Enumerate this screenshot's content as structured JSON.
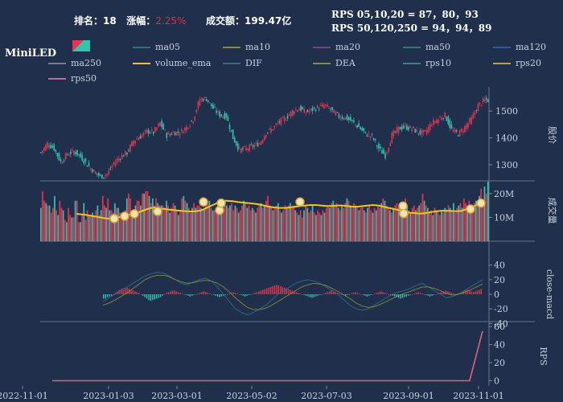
{
  "header": {
    "rank_label": "排名：",
    "rank_value": "18",
    "change_label": "涨幅：",
    "change_value": "2.25%",
    "turnover_label": "成交额：",
    "turnover_value": "199.47亿",
    "rps_line1": "RPS 05,10,20 = 87，80，93",
    "rps_line2": "RPS 50,120,250 = 94，94，89"
  },
  "title": "MiniLED",
  "legend": [
    {
      "name": "ma05",
      "color": "#2a6f8a"
    },
    {
      "name": "ma10",
      "color": "#8a8a3a"
    },
    {
      "name": "ma20",
      "color": "#6a4a7a"
    },
    {
      "name": "ma50",
      "color": "#2f7a6a"
    },
    {
      "name": "ma120",
      "color": "#2a5a9a"
    },
    {
      "name": "ma250",
      "color": "#7a7a8a"
    },
    {
      "name": "volume_ema",
      "color": "#f5c518"
    },
    {
      "name": "DIF",
      "color": "#2a6f8a"
    },
    {
      "name": "DEA",
      "color": "#8a8a3a"
    },
    {
      "name": "rps10",
      "color": "#2a8a8a"
    },
    {
      "name": "rps20",
      "color": "#c0a040"
    },
    {
      "name": "rps50",
      "color": "#d060a0"
    }
  ],
  "colors": {
    "up": "#e8354f",
    "down": "#36c3ae",
    "ema": "#f5c518",
    "rps": "#e0607e"
  },
  "chart_data": [
    {
      "type": "candlestick",
      "ylabel": "股价",
      "yticks": [
        1300,
        1400,
        1500
      ],
      "ylim": [
        1240,
        1590
      ],
      "dates": [
        "2022-11-01",
        "2023-11-01"
      ],
      "points": [
        [
          0,
          1345
        ],
        [
          4,
          1380
        ],
        [
          8,
          1360
        ],
        [
          12,
          1310
        ],
        [
          16,
          1340
        ],
        [
          20,
          1350
        ],
        [
          24,
          1330
        ],
        [
          28,
          1300
        ],
        [
          32,
          1275
        ],
        [
          36,
          1255
        ],
        [
          40,
          1265
        ],
        [
          44,
          1305
        ],
        [
          48,
          1330
        ],
        [
          52,
          1345
        ],
        [
          56,
          1390
        ],
        [
          60,
          1405
        ],
        [
          64,
          1425
        ],
        [
          68,
          1420
        ],
        [
          72,
          1455
        ],
        [
          76,
          1410
        ],
        [
          80,
          1420
        ],
        [
          84,
          1420
        ],
        [
          88,
          1440
        ],
        [
          92,
          1470
        ],
        [
          96,
          1545
        ],
        [
          100,
          1545
        ],
        [
          104,
          1510
        ],
        [
          108,
          1485
        ],
        [
          112,
          1480
        ],
        [
          116,
          1400
        ],
        [
          120,
          1355
        ],
        [
          124,
          1360
        ],
        [
          128,
          1370
        ],
        [
          132,
          1380
        ],
        [
          136,
          1420
        ],
        [
          140,
          1435
        ],
        [
          144,
          1460
        ],
        [
          148,
          1475
        ],
        [
          152,
          1500
        ],
        [
          156,
          1510
        ],
        [
          160,
          1495
        ],
        [
          164,
          1505
        ],
        [
          168,
          1515
        ],
        [
          172,
          1520
        ],
        [
          176,
          1500
        ],
        [
          180,
          1480
        ],
        [
          184,
          1475
        ],
        [
          188,
          1460
        ],
        [
          192,
          1440
        ],
        [
          196,
          1415
        ],
        [
          200,
          1405
        ],
        [
          204,
          1360
        ],
        [
          208,
          1335
        ],
        [
          212,
          1410
        ],
        [
          216,
          1435
        ],
        [
          220,
          1440
        ],
        [
          224,
          1435
        ],
        [
          228,
          1420
        ],
        [
          232,
          1420
        ],
        [
          236,
          1455
        ],
        [
          240,
          1470
        ],
        [
          244,
          1485
        ],
        [
          248,
          1430
        ],
        [
          252,
          1415
        ],
        [
          256,
          1440
        ],
        [
          260,
          1470
        ],
        [
          264,
          1520
        ],
        [
          268,
          1540
        ]
      ]
    },
    {
      "type": "bar",
      "ylabel": "成交量",
      "ytick_labels": [
        "10M",
        "20M"
      ],
      "yticks": [
        10000000,
        20000000
      ],
      "ylim": [
        0,
        25000000
      ],
      "volumes": [
        14,
        21,
        17,
        16,
        15,
        15,
        12,
        14,
        19,
        13,
        11,
        17,
        14,
        13,
        9,
        8,
        14,
        11,
        10,
        10,
        17,
        17,
        8,
        8,
        11,
        16,
        9,
        13,
        11,
        11,
        12,
        11,
        13,
        15,
        11,
        13,
        19,
        15,
        14,
        18,
        13,
        13,
        12,
        16,
        14,
        14,
        12,
        11,
        12,
        13,
        18,
        20,
        18,
        11,
        13,
        15,
        17,
        17,
        15,
        20,
        20,
        21,
        21,
        19,
        16,
        18,
        15,
        18,
        16,
        15,
        15,
        15,
        14,
        17,
        15,
        12,
        14,
        16,
        15,
        13,
        11,
        13,
        18,
        19,
        17,
        16,
        14,
        12,
        14,
        16,
        14,
        15,
        15,
        14,
        13,
        14,
        15,
        16,
        17,
        14,
        13,
        13,
        14,
        15,
        13,
        15,
        14,
        16,
        15,
        14,
        15,
        16,
        13,
        15,
        14,
        12,
        13,
        15,
        17,
        16,
        14,
        15,
        13,
        14,
        13,
        12,
        14,
        15,
        16,
        14,
        15,
        17,
        19,
        15,
        14,
        13,
        14,
        15,
        16,
        13,
        12,
        13,
        15,
        14,
        15,
        16,
        14,
        15,
        13,
        12,
        11,
        13,
        10,
        13,
        15,
        14,
        12,
        13,
        15,
        12,
        11,
        13,
        12,
        11,
        13,
        12,
        14,
        15,
        14,
        16,
        17,
        15,
        16,
        14,
        13,
        15,
        14,
        16,
        18,
        17,
        15,
        14,
        16,
        15,
        14,
        13,
        14,
        15,
        13,
        12,
        14,
        15,
        13,
        12,
        14,
        13,
        15,
        14,
        16,
        18,
        17,
        15,
        14,
        13,
        12,
        14,
        15,
        16,
        14,
        13,
        14,
        16,
        18,
        15,
        13,
        12,
        14,
        15,
        13,
        14,
        15,
        16,
        20,
        17,
        15,
        14,
        12,
        13,
        11,
        14,
        13,
        12,
        11,
        13,
        12,
        14,
        13,
        15,
        14,
        13,
        16,
        12,
        14,
        15,
        16,
        14,
        18,
        16,
        15,
        17,
        14,
        13,
        16,
        17,
        15,
        19,
        22,
        17,
        23,
        20,
        25
      ],
      "ema": [
        11.5,
        11.3,
        11.0,
        10.6,
        10.2,
        9.8,
        9.5,
        9.5,
        10.0,
        10.6,
        11.0,
        11.5,
        12.2,
        13.0,
        13.8,
        14.2,
        13.8,
        13.5,
        13.2,
        13.0,
        12.8,
        12.6,
        12.5,
        12.6,
        13.0,
        14.0,
        15.0,
        16.0,
        17.0,
        17.0,
        16.8,
        16.5,
        16.2,
        16.0,
        15.8,
        15.5,
        15.0,
        14.5,
        14.2,
        14.0,
        14.0,
        14.2,
        14.5,
        14.8,
        15.0,
        15.2,
        15.2,
        15.0,
        14.8,
        14.8,
        15.0,
        15.0,
        14.8,
        14.5,
        14.5,
        14.8,
        15.0,
        15.2,
        15.0,
        14.5,
        14.0,
        13.5,
        13.0,
        12.5,
        12.0,
        11.8,
        11.6,
        11.8,
        12.2,
        12.5,
        12.8,
        12.8,
        12.7,
        12.6,
        12.8,
        13.5,
        14.2,
        15.5,
        16.5
      ],
      "markers": [
        9.5,
        10.5,
        11.5,
        12.5,
        16.5,
        13.0,
        16.0,
        16.5,
        14.8,
        11.6,
        13.5,
        16.0
      ]
    },
    {
      "type": "bar+line",
      "ylabel": "close-macd",
      "yticks": [
        -40,
        -20,
        0,
        20,
        40
      ],
      "ylim": [
        -44,
        44
      ],
      "dif": [
        -10,
        -5,
        0,
        5,
        10,
        15,
        20,
        25,
        28,
        30,
        29,
        25,
        20,
        15,
        13,
        17,
        20,
        22,
        18,
        10,
        0,
        -10,
        -20,
        -25,
        -28,
        -25,
        -20,
        -15,
        -8,
        0,
        5,
        10,
        15,
        18,
        20,
        18,
        15,
        10,
        5,
        0,
        -8,
        -15,
        -20,
        -22,
        -20,
        -15,
        -10,
        -5,
        0,
        3,
        5,
        8,
        12,
        15,
        10,
        5,
        0,
        -5,
        -3,
        0,
        5,
        10,
        15,
        20
      ],
      "dea": [
        -15,
        -12,
        -8,
        -3,
        2,
        8,
        14,
        20,
        24,
        26,
        26,
        24,
        20,
        17,
        15,
        16,
        18,
        19,
        18,
        15,
        10,
        3,
        -5,
        -12,
        -18,
        -21,
        -21,
        -19,
        -15,
        -10,
        -5,
        0,
        5,
        10,
        13,
        15,
        14,
        12,
        8,
        4,
        -1,
        -6,
        -12,
        -16,
        -18,
        -17,
        -14,
        -10,
        -6,
        -2,
        1,
        4,
        7,
        10,
        10,
        8,
        5,
        1,
        -1,
        0,
        3,
        6,
        10,
        14
      ],
      "hist": [
        -6,
        -6,
        -4,
        -3,
        -2,
        0,
        2,
        4,
        6,
        7,
        8,
        9,
        9,
        8,
        6,
        5,
        4,
        3,
        2,
        0,
        -2,
        -4,
        -6,
        -8,
        -9,
        -8,
        -7,
        -6,
        -5,
        -4,
        -2,
        0,
        2,
        3,
        4,
        5,
        5,
        4,
        3,
        2,
        1,
        0,
        -1,
        -2,
        -3,
        -2,
        -1,
        0,
        1,
        2,
        3,
        4,
        3,
        2,
        1,
        0,
        -1,
        -2,
        -3,
        -4,
        -3,
        -2,
        -1,
        0,
        1,
        2,
        3,
        2,
        1,
        0,
        -1,
        -2,
        -3,
        -2,
        -1,
        0,
        1,
        2,
        3,
        4,
        5,
        6,
        7,
        8,
        9,
        10,
        11,
        12,
        13,
        12,
        11,
        10,
        9,
        8,
        7,
        6,
        5,
        4,
        3,
        2,
        1,
        0,
        -1,
        -2,
        -3,
        -4,
        -5,
        -4,
        -3,
        -2,
        -1,
        0,
        1,
        2,
        3,
        4,
        5,
        4,
        3,
        2,
        1,
        0,
        -1,
        -2,
        -1,
        0,
        1,
        2,
        3,
        2,
        1,
        0,
        -1,
        -2,
        -3,
        -2,
        -1,
        0,
        1,
        2,
        3,
        4,
        3,
        2,
        1,
        0,
        -1,
        -2,
        -3,
        -4,
        -5,
        -6,
        -5,
        -4,
        -3,
        -2,
        -1,
        0,
        1,
        2,
        3,
        2,
        1,
        0,
        -1,
        -2,
        -3,
        -2,
        -1,
        0,
        1,
        2,
        3,
        4,
        5,
        4,
        3,
        2,
        1,
        0,
        1,
        2,
        3,
        4,
        5,
        6,
        5,
        4,
        3,
        4,
        5,
        6,
        7
      ]
    },
    {
      "type": "line",
      "ylabel": "RPS",
      "yticks": [
        0,
        20,
        40,
        60
      ],
      "ylim": [
        -4,
        62
      ],
      "x": [
        "2022-11-01",
        "2023-01-03",
        "2023-03-01",
        "2023-05-02",
        "2023-07-03",
        "2023-09-01",
        "2023-11-01"
      ],
      "rps50": [
        {
          "t": 0,
          "v": 0
        },
        {
          "t": 0.97,
          "v": 0
        },
        {
          "t": 1,
          "v": 55
        }
      ]
    }
  ]
}
